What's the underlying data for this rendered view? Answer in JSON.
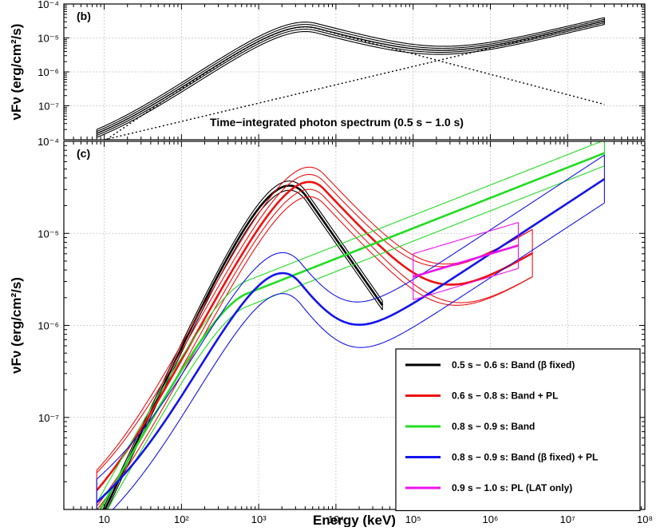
{
  "chart_data": [
    {
      "type": "line",
      "panel_label": "(b)",
      "annotation": "Time−integrated photon spectrum (0.5 s − 1.0 s)",
      "ylabel": "νFν (erg/cm²/s)",
      "xlabel": "",
      "xscale": "log",
      "yscale": "log",
      "xlim": [
        3,
        100000000
      ],
      "ylim": [
        1e-08,
        0.0001
      ],
      "grid": true,
      "y_ticks": [
        "10⁻⁷",
        "10⁻⁶",
        "10⁻⁵",
        "10⁻⁴"
      ],
      "series": [
        {
          "color": "#000000",
          "style": "band",
          "x_range": [
            8,
            30000000
          ],
          "components": [
            {
              "type": "band",
              "peak_energy": 4000,
              "peak_flux": 2.1e-05,
              "alpha": -0.45,
              "beta": -2.6,
              "rel_widths": [
                -0.14,
                -0.07,
                0.0,
                0.07,
                0.14
              ]
            },
            {
              "type": "pl",
              "ref_energy": 1000000,
              "ref_flux": 5e-06,
              "index": -1.46,
              "rel_widths": [
                -0.1,
                -0.05,
                0.0,
                0.05,
                0.1
              ]
            }
          ]
        },
        {
          "color": "#000000",
          "style": "dotted",
          "x_range": [
            8,
            30000000
          ],
          "components": [
            {
              "type": "band",
              "peak_energy": 4000,
              "peak_flux": 2.1e-05,
              "alpha": -0.45,
              "beta": -2.6,
              "rel_widths": [
                0.0
              ]
            }
          ]
        },
        {
          "color": "#000000",
          "style": "dotted",
          "x_range": [
            8,
            30000000
          ],
          "components": [
            {
              "type": "pl",
              "ref_energy": 1000000,
              "ref_flux": 5e-06,
              "index": -1.46,
              "rel_widths": [
                0.0
              ]
            }
          ]
        }
      ]
    },
    {
      "type": "line",
      "panel_label": "(c)",
      "ylabel": "νFν (erg/cm²/s)",
      "xlabel": "Energy (keV)",
      "xscale": "log",
      "yscale": "log",
      "xlim": [
        3,
        100000000
      ],
      "ylim": [
        1e-08,
        0.0001
      ],
      "grid": true,
      "x_ticks": [
        "10",
        "10²",
        "10³",
        "10⁴",
        "10⁵",
        "10⁶",
        "10⁷",
        "10⁸"
      ],
      "y_ticks": [
        "10⁻⁷",
        "10⁻⁶",
        "10⁻⁵",
        "10⁻⁴"
      ],
      "legend_position": "bottom-right",
      "series": [
        {
          "name": "0.5 s − 0.6 s: Band (β fixed)",
          "color": "#000000",
          "x_range": [
            8,
            40000
          ],
          "components": [
            {
              "type": "band",
              "peak_energy": 2500,
              "peak_flux": 3.3e-05,
              "alpha": -0.2,
              "beta": -3.2,
              "rel_widths": [
                -0.1,
                -0.05,
                0.0,
                0.05,
                0.1
              ]
            }
          ]
        },
        {
          "name": "0.6 s − 0.8 s: Band + PL",
          "color": "#ee1111",
          "x_range": [
            8,
            3500000
          ],
          "components": [
            {
              "type": "band",
              "peak_energy": 4500,
              "peak_flux": 3.6e-05,
              "alpha": -0.4,
              "beta": -2.9,
              "rel_widths": [
                -0.16,
                -0.08,
                0.0,
                0.08,
                0.16
              ]
            },
            {
              "type": "pl",
              "ref_energy": 1000000,
              "ref_flux": 3.2e-06,
              "index": -1.5,
              "rel_widths": [
                -0.26,
                0.0,
                0.26
              ]
            }
          ]
        },
        {
          "name": "0.8 s − 0.9 s: Band",
          "color": "#22dd22",
          "x_range": [
            8,
            30000000
          ],
          "components": [
            {
              "type": "band",
              "peak_energy": 900,
              "peak_flux": 2.4e-06,
              "alpha": -0.5,
              "beta": -1.67,
              "rel_widths": [
                -0.14,
                0.0,
                0.14
              ]
            }
          ]
        },
        {
          "name": "0.8 s − 0.9 s: Band (β fixed) + PL",
          "color": "#1414ee",
          "x_range": [
            8,
            30000000
          ],
          "components": [
            {
              "type": "band",
              "peak_energy": 2000,
              "peak_flux": 3.5e-06,
              "alpha": -0.4,
              "beta": -3.2,
              "rel_widths": [
                -0.22,
                0.0,
                0.22
              ]
            },
            {
              "type": "pl",
              "ref_energy": 1000000,
              "ref_flux": 6e-06,
              "index": -1.45,
              "rel_widths": [
                -0.26,
                0.0,
                0.26
              ]
            }
          ]
        },
        {
          "name": "0.9 s − 1.0 s: PL (LAT only)",
          "color": "#ee11ee",
          "x_range": [
            100000,
            2300000
          ],
          "components": [
            {
              "type": "pl",
              "ref_energy": 1000000,
              "ref_flux": 6e-06,
              "index": -1.75,
              "rel_widths": [
                -0.25,
                0.0,
                0.25
              ]
            }
          ]
        }
      ]
    }
  ]
}
